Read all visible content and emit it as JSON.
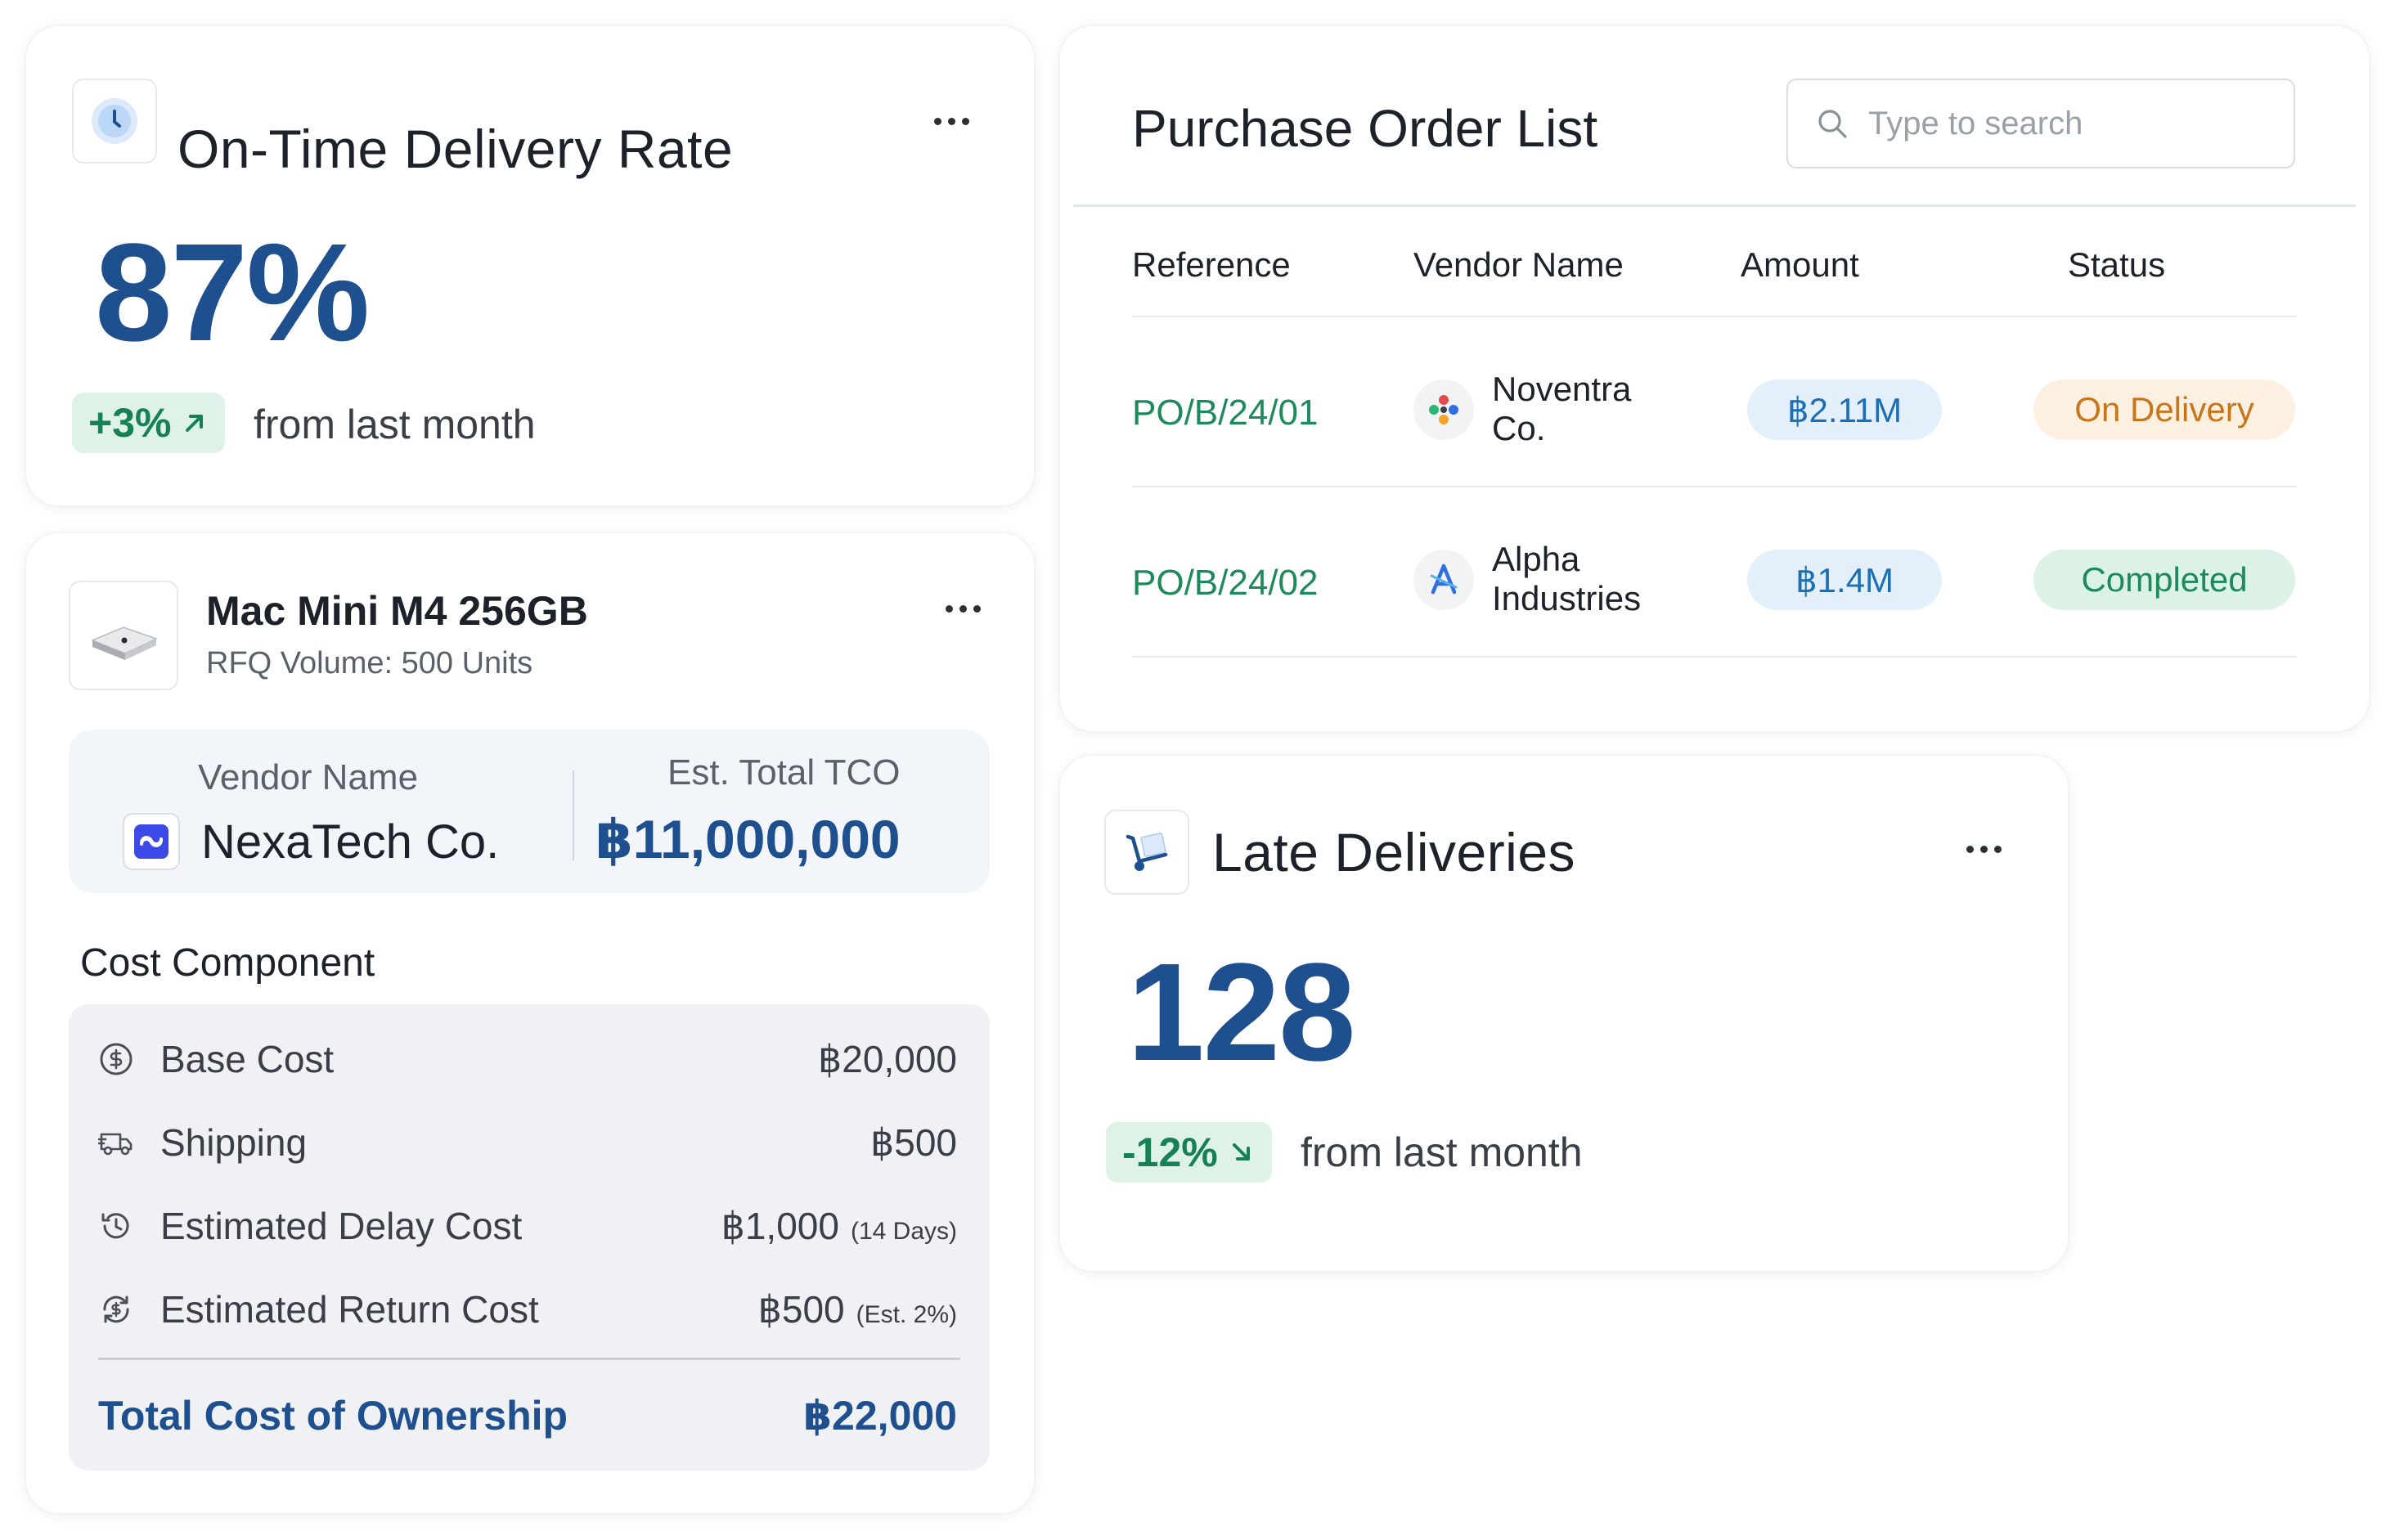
{
  "ontime": {
    "title": "On-Time Delivery Rate",
    "value": "87%",
    "delta": "+3%",
    "delta_note": "from last month",
    "icon": "clock-icon"
  },
  "product": {
    "name": "Mac Mini M4 256GB",
    "subtitle": "RFQ Volume: 500 Units",
    "vendor_label": "Vendor Name",
    "vendor_name": "NexaTech Co.",
    "tco_label": "Est. Total TCO",
    "tco_value": "฿11,000,000",
    "section_title": "Cost Component",
    "costs": [
      {
        "label": "Base Cost",
        "value": "฿20,000",
        "note": "",
        "icon": "dollar-circle-icon"
      },
      {
        "label": "Shipping",
        "value": "฿500",
        "note": "",
        "icon": "truck-icon"
      },
      {
        "label": "Estimated Delay Cost",
        "value": "฿1,000",
        "note": "(14 Days)",
        "icon": "history-icon"
      },
      {
        "label": "Estimated Return Cost",
        "value": "฿500",
        "note": "(Est. 2%)",
        "icon": "refund-icon"
      }
    ],
    "total_label": "Total Cost of Ownership",
    "total_value": "฿22,000"
  },
  "po": {
    "title": "Purchase Order List",
    "search_placeholder": "Type to search",
    "columns": [
      "Reference",
      "Vendor Name",
      "Amount",
      "Status"
    ],
    "rows": [
      {
        "ref": "PO/B/24/01",
        "vendor_line1": "Noventra",
        "vendor_line2": "Co.",
        "amount": "฿2.11M",
        "status": "On Delivery",
        "status_color": "#c8761a",
        "status_bg": "#fdf0e0"
      },
      {
        "ref": "PO/B/24/02",
        "vendor_line1": "Alpha",
        "vendor_line2": "Industries",
        "amount": "฿1.4M",
        "status": "Completed",
        "status_color": "#1d8a5c",
        "status_bg": "#dcf2e7"
      }
    ]
  },
  "late": {
    "title": "Late Deliveries",
    "value": "128",
    "delta": "-12%",
    "delta_note": "from last month",
    "icon": "hand-truck-icon"
  },
  "colors": {
    "accent": "#1e4f8e",
    "positive": "#178054",
    "positive_bg": "#dff2e8"
  }
}
